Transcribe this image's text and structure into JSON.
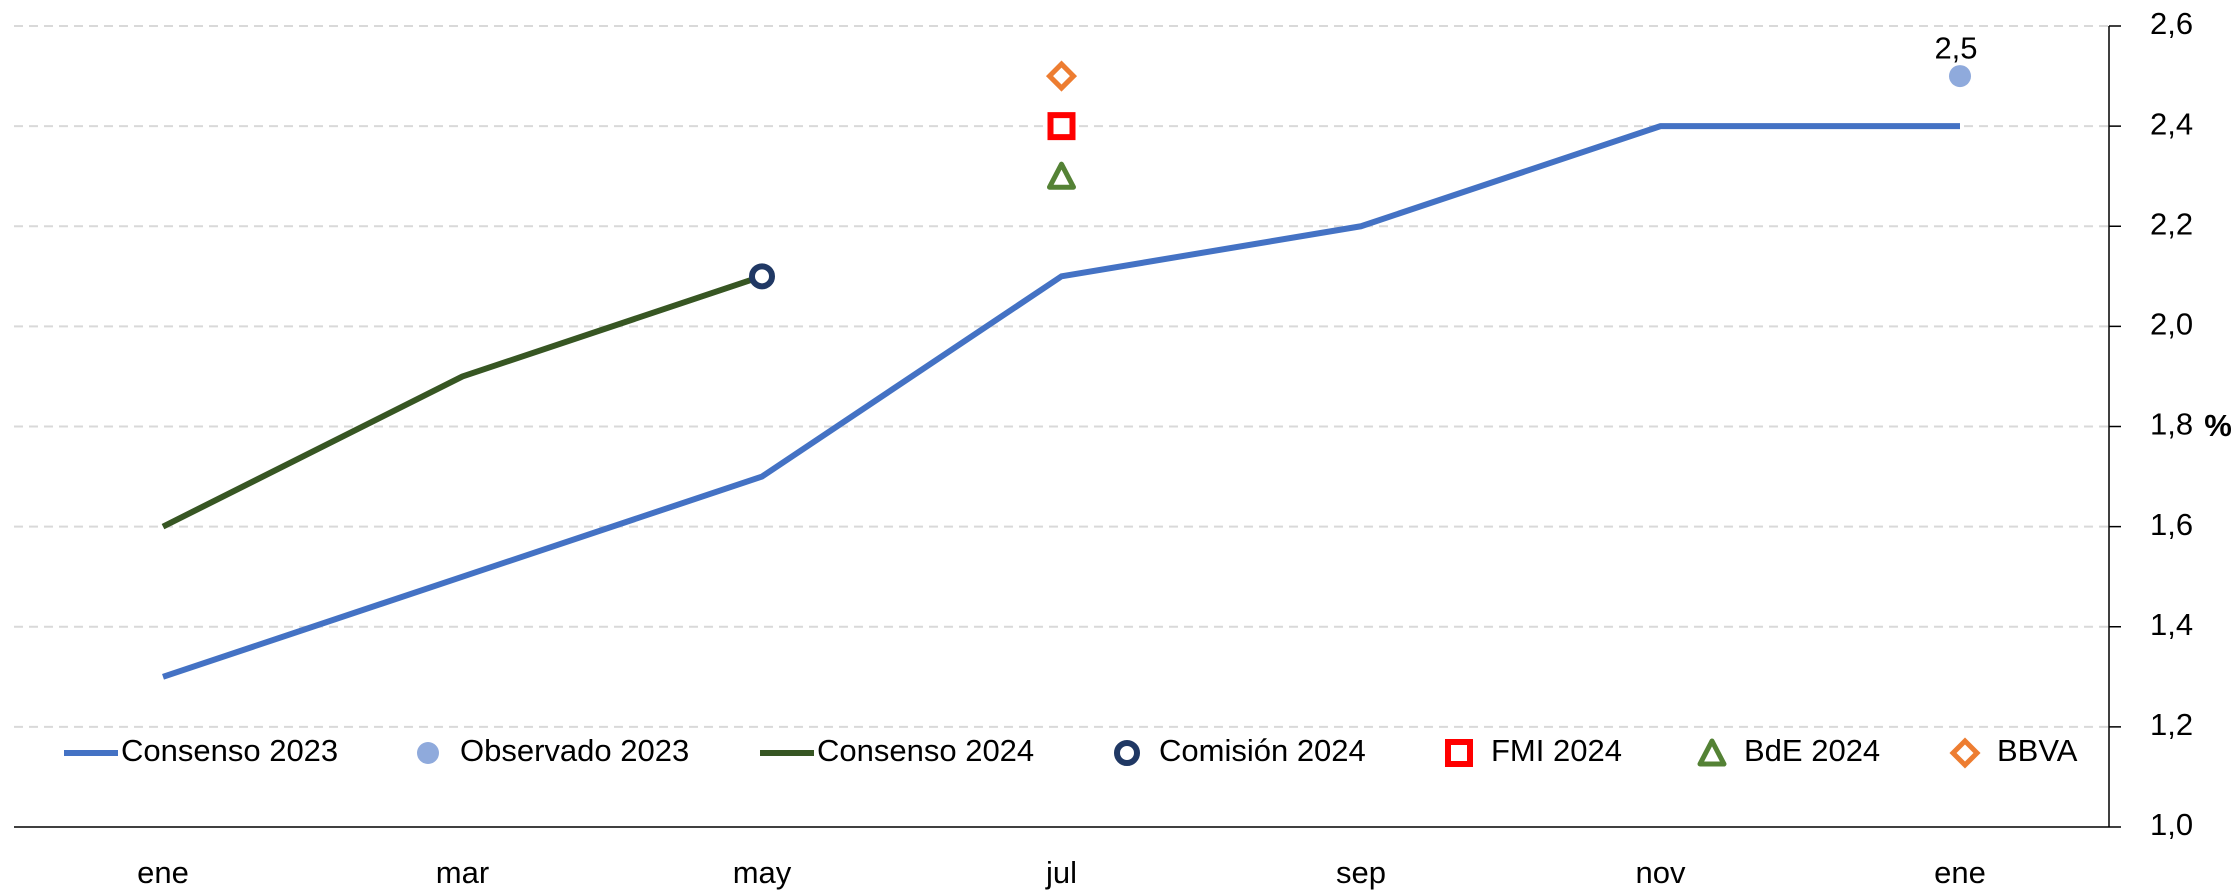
{
  "chart_data": {
    "type": "line",
    "categories": [
      "ene",
      "mar",
      "may",
      "jul",
      "sep",
      "nov",
      "ene"
    ],
    "y_label": "%",
    "ylim": [
      1.0,
      2.6
    ],
    "yticks": [
      {
        "value": 1.0,
        "label": "1,0"
      },
      {
        "value": 1.2,
        "label": "1,2"
      },
      {
        "value": 1.4,
        "label": "1,4"
      },
      {
        "value": 1.6,
        "label": "1,6"
      },
      {
        "value": 1.8,
        "label": "1,8"
      },
      {
        "value": 2.0,
        "label": "2,0"
      },
      {
        "value": 2.2,
        "label": "2,2"
      },
      {
        "value": 2.4,
        "label": "2,4"
      },
      {
        "value": 2.6,
        "label": "2,6"
      }
    ],
    "grid": true,
    "legend": "bottom",
    "series": [
      {
        "name": "Consenso 2023",
        "color": "#4472c4",
        "style": "line",
        "values": [
          1.3,
          1.5,
          1.7,
          2.1,
          2.2,
          2.4,
          2.4
        ]
      },
      {
        "name": "Observado 2023",
        "color": "#8faadc",
        "style": "marker",
        "marker": "dot",
        "values": [
          null,
          null,
          null,
          null,
          null,
          null,
          2.5
        ],
        "value_labels": [
          null,
          null,
          null,
          null,
          null,
          null,
          "2,5"
        ]
      },
      {
        "name": "Consenso 2024",
        "color": "#375623",
        "style": "line",
        "values": [
          1.6,
          1.9,
          2.1,
          null,
          null,
          null,
          null
        ]
      },
      {
        "name": "Comisión 2024",
        "color": "#203864",
        "style": "marker",
        "marker": "circle",
        "values": [
          null,
          null,
          2.1,
          null,
          null,
          null,
          null
        ]
      },
      {
        "name": "FMI 2024",
        "color": "#ff0000",
        "style": "marker",
        "marker": "square",
        "values": [
          null,
          null,
          null,
          2.4,
          null,
          null,
          null
        ]
      },
      {
        "name": "BdE 2024",
        "color": "#548235",
        "style": "marker",
        "marker": "triangle",
        "values": [
          null,
          null,
          null,
          2.3,
          null,
          null,
          null
        ]
      },
      {
        "name": "BBVA",
        "color": "#ed7d31",
        "style": "marker",
        "marker": "diamond",
        "values": [
          null,
          null,
          null,
          2.5,
          null,
          null,
          null
        ]
      }
    ]
  }
}
